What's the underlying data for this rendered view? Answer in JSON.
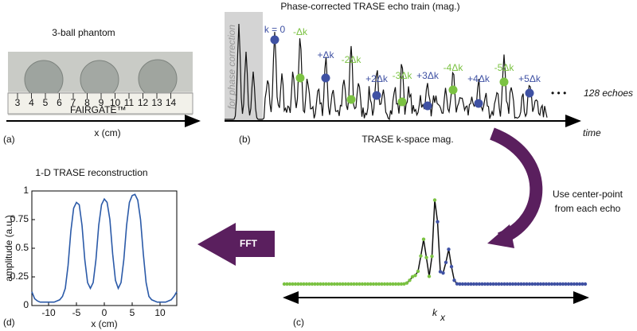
{
  "panel_a": {
    "title": "3-ball phantom",
    "label": "(a)",
    "axis_label": "x (cm)",
    "ruler_labels": [
      "3",
      "4",
      "5",
      "6",
      "7",
      "8",
      "9",
      "10",
      "11",
      "12",
      "13",
      "14"
    ],
    "brand": "FAIRGATE™"
  },
  "panel_b": {
    "title": "Phase-corrected TRASE echo train (mag.)",
    "label": "(b)",
    "side_note": "for phase correction",
    "echo_labels": [
      "k = 0",
      "-Δk",
      "+Δk",
      "-2Δk",
      "+2Δk",
      "-3Δk",
      "+3Δk",
      "-4Δk",
      "+4Δk",
      "-5Δk",
      "+5Δk"
    ],
    "ellipsis": "• • •",
    "echo_count": "128 echoes",
    "axis_label": "time"
  },
  "arrow_note": [
    "Use center-point",
    "from each echo"
  ],
  "fft_label": "FFT",
  "panel_c": {
    "title": "TRASE k-space mag.",
    "label": "(c)",
    "axis_label": "k",
    "axis_subscript": "x"
  },
  "panel_d": {
    "label": "(d)",
    "chart_data": {
      "type": "line",
      "title": "1-D TRASE reconstruction",
      "x_label": "x (cm)",
      "y_label": "amplitude (a.u.)",
      "xlim": [
        -13,
        13
      ],
      "ylim": [
        0,
        1
      ],
      "xticks": [
        -10,
        -5,
        0,
        5,
        10
      ],
      "yticks": [
        0,
        0.25,
        0.5,
        0.75,
        1
      ],
      "x": [
        -13,
        -12.5,
        -12,
        -11.5,
        -11,
        -10.5,
        -10,
        -9.5,
        -9,
        -8.5,
        -8,
        -7.5,
        -7,
        -6.5,
        -6,
        -5.5,
        -5,
        -4.5,
        -4,
        -3.5,
        -3,
        -2.5,
        -2,
        -1.5,
        -1,
        -0.5,
        0,
        0.5,
        1,
        1.5,
        2,
        2.5,
        3,
        3.5,
        4,
        4.5,
        5,
        5.5,
        6,
        6.5,
        7,
        7.5,
        8,
        8.5,
        9,
        9.5,
        10,
        10.5,
        11,
        11.5,
        12,
        12.5,
        13
      ],
      "series": [
        {
          "color": "#2b5aa8",
          "values": [
            0.12,
            0.06,
            0.04,
            0.03,
            0.03,
            0.03,
            0.03,
            0.03,
            0.03,
            0.04,
            0.05,
            0.08,
            0.15,
            0.35,
            0.65,
            0.85,
            0.9,
            0.88,
            0.7,
            0.4,
            0.2,
            0.15,
            0.2,
            0.4,
            0.7,
            0.88,
            0.93,
            0.9,
            0.75,
            0.45,
            0.22,
            0.15,
            0.2,
            0.4,
            0.7,
            0.9,
            0.96,
            0.97,
            0.92,
            0.75,
            0.45,
            0.2,
            0.08,
            0.05,
            0.04,
            0.03,
            0.03,
            0.03,
            0.03,
            0.04,
            0.05,
            0.08,
            0.12
          ]
        }
      ]
    }
  }
}
